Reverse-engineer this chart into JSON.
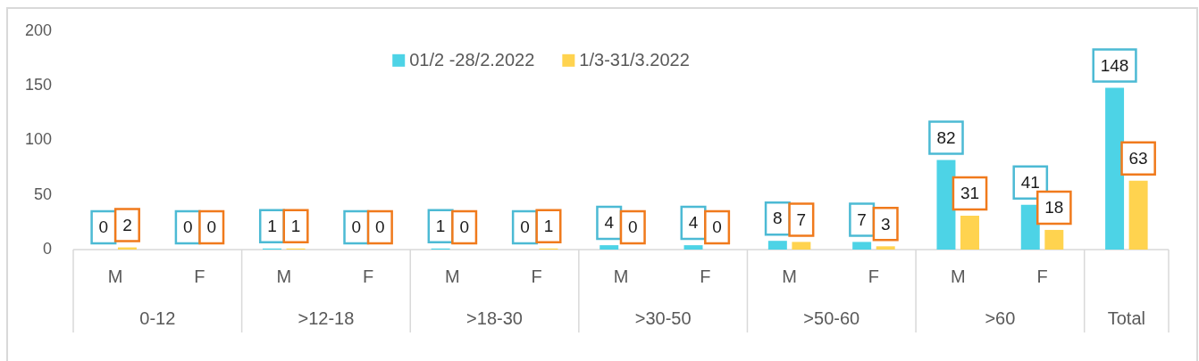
{
  "chart_data": {
    "type": "bar",
    "categories": [
      "M",
      "F",
      "M",
      "F",
      "M",
      "F",
      "M",
      "F",
      "M",
      "F",
      "M",
      "F",
      null
    ],
    "series": [
      {
        "name": "01/2 -28/2.2022",
        "color": "#4dd3e6",
        "values": [
          0,
          0,
          1,
          0,
          1,
          0,
          4,
          4,
          8,
          7,
          82,
          41,
          148
        ]
      },
      {
        "name": "1/3-31/3.2022",
        "color": "#ffd34f",
        "values": [
          2,
          0,
          1,
          0,
          0,
          1,
          0,
          0,
          7,
          3,
          31,
          18,
          63
        ]
      }
    ],
    "ylim": [
      0,
      200
    ],
    "yticks": [
      0,
      50,
      100,
      150,
      200
    ],
    "legend": "top",
    "data_labels": true,
    "annotations": [
      "0-12",
      ">12-18",
      ">18-30",
      ">30-50",
      ">50-60",
      ">60",
      "Total"
    ]
  }
}
